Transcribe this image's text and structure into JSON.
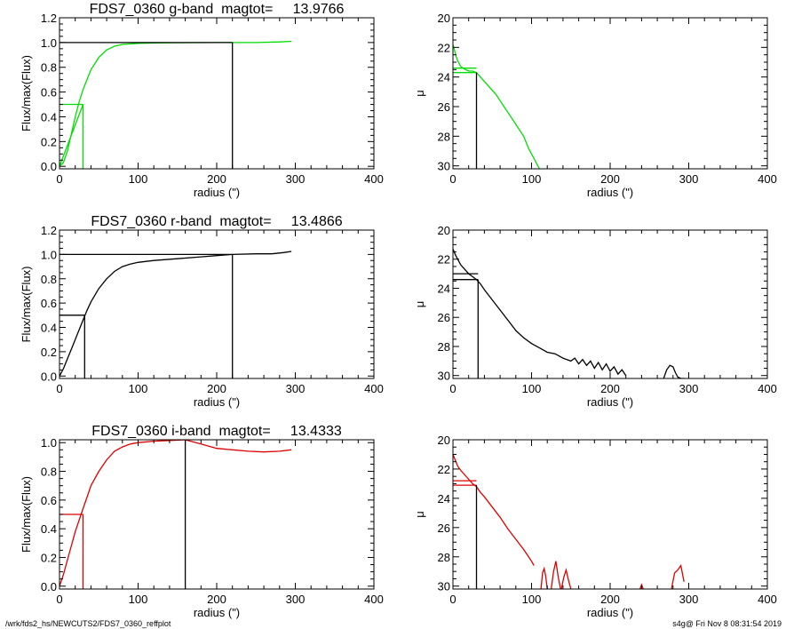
{
  "footer": {
    "path": "/wrk/fds2_hs/NEWCUTS2/FDS7_0360_reffplot",
    "stamp": "s4g@  Fri Nov  8 08:31:54 2019"
  },
  "colors": {
    "g": "#00dd00",
    "r": "#000000",
    "i": "#dd0000",
    "axis": "#000000"
  },
  "chart_data": [
    {
      "id": "g-growth",
      "type": "line",
      "title": "FDS7_0360 g-band  magtot=     13.9766",
      "xlabel": "radius (\")",
      "ylabel": "Flux/max(Flux)",
      "xlim": [
        0,
        400
      ],
      "ylim": [
        -0.02,
        1.2
      ],
      "xticks": [
        0,
        100,
        200,
        300,
        400
      ],
      "yticks": [
        0.0,
        0.2,
        0.4,
        0.6,
        0.8,
        1.0,
        1.2
      ],
      "ytick_labels": [
        "0.0",
        "0.2",
        "0.4",
        "0.6",
        "0.8",
        "1.0",
        "1.2"
      ],
      "series": [
        {
          "color": "#00dd00",
          "x": [
            0,
            5,
            10,
            15,
            20,
            25,
            30,
            40,
            50,
            60,
            70,
            80,
            100,
            120,
            150,
            200,
            220,
            250,
            280,
            295
          ],
          "y": [
            0.0,
            0.03,
            0.12,
            0.26,
            0.4,
            0.52,
            0.62,
            0.78,
            0.88,
            0.94,
            0.97,
            0.985,
            0.993,
            0.996,
            0.998,
            1.0,
            1.0,
            1.0,
            1.005,
            1.01
          ]
        }
      ],
      "markers": [
        {
          "color": "#00dd00",
          "segments": [
            [
              [
                0,
                0.5
              ],
              [
                30,
                0.5
              ]
            ],
            [
              [
                30,
                0.5
              ],
              [
                30,
                -0.02
              ]
            ],
            [
              [
                0,
                0
              ],
              [
                30,
                0.5
              ]
            ]
          ]
        },
        {
          "color": "#000000",
          "segments": [
            [
              [
                0,
                1.0
              ],
              [
                220,
                1.0
              ]
            ],
            [
              [
                220,
                1.0
              ],
              [
                220,
                -0.02
              ]
            ]
          ]
        }
      ]
    },
    {
      "id": "g-mu",
      "type": "line",
      "title": "",
      "xlabel": "radius (\")",
      "ylabel": "μ",
      "xlim": [
        0,
        400
      ],
      "ylim": [
        30.2,
        20
      ],
      "xticks": [
        0,
        100,
        200,
        300,
        400
      ],
      "yticks": [
        20,
        22,
        24,
        26,
        28,
        30
      ],
      "series": [
        {
          "color": "#00dd00",
          "x": [
            0,
            2,
            4,
            6,
            8,
            10,
            13,
            16,
            20,
            25,
            30,
            35,
            40,
            45,
            50,
            55,
            60,
            65,
            70,
            75,
            80,
            85,
            90,
            93,
            96,
            100,
            103,
            106,
            108,
            110
          ],
          "y": [
            21.8,
            22.2,
            22.6,
            22.9,
            23.1,
            23.3,
            23.4,
            23.5,
            23.6,
            23.6,
            23.7,
            24.0,
            24.3,
            24.6,
            24.9,
            25.2,
            25.6,
            26.0,
            26.4,
            26.8,
            27.2,
            27.6,
            28.0,
            28.4,
            28.8,
            29.2,
            29.5,
            29.8,
            30.0,
            30.2
          ]
        }
      ],
      "markers": [
        {
          "color": "#00dd00",
          "segments": [
            [
              [
                0,
                23.4
              ],
              [
                30,
                23.4
              ]
            ],
            [
              [
                0,
                23.7
              ],
              [
                30,
                23.7
              ]
            ]
          ]
        },
        {
          "color": "#000000",
          "segments": [
            [
              [
                30,
                23.7
              ],
              [
                30,
                30.2
              ]
            ]
          ]
        }
      ]
    },
    {
      "id": "r-growth",
      "type": "line",
      "title": "FDS7_0360 r-band  magtot=     13.4866",
      "xlabel": "radius (\")",
      "ylabel": "Flux/max(Flux)",
      "xlim": [
        0,
        400
      ],
      "ylim": [
        -0.02,
        1.2
      ],
      "xticks": [
        0,
        100,
        200,
        300,
        400
      ],
      "yticks": [
        0.0,
        0.2,
        0.4,
        0.6,
        0.8,
        1.0,
        1.2
      ],
      "ytick_labels": [
        "0.0",
        "0.2",
        "0.4",
        "0.6",
        "0.8",
        "1.0",
        "1.2"
      ],
      "series": [
        {
          "color": "#000000",
          "x": [
            0,
            5,
            10,
            15,
            20,
            25,
            30,
            35,
            40,
            50,
            60,
            70,
            80,
            90,
            100,
            120,
            150,
            180,
            200,
            220,
            250,
            270,
            285,
            295
          ],
          "y": [
            0.0,
            0.06,
            0.14,
            0.22,
            0.3,
            0.38,
            0.46,
            0.54,
            0.61,
            0.72,
            0.8,
            0.86,
            0.9,
            0.92,
            0.935,
            0.95,
            0.965,
            0.98,
            0.99,
            1.0,
            1.005,
            1.005,
            1.015,
            1.025
          ]
        }
      ],
      "markers": [
        {
          "color": "#000000",
          "segments": [
            [
              [
                0,
                0.5
              ],
              [
                32,
                0.5
              ]
            ],
            [
              [
                32,
                0.5
              ],
              [
                32,
                -0.02
              ]
            ],
            [
              [
                0,
                1.0
              ],
              [
                220,
                1.0
              ]
            ],
            [
              [
                220,
                1.0
              ],
              [
                220,
                -0.02
              ]
            ]
          ]
        }
      ]
    },
    {
      "id": "r-mu",
      "type": "line",
      "title": "",
      "xlabel": "radius (\")",
      "ylabel": "μ",
      "xlim": [
        0,
        400
      ],
      "ylim": [
        30.2,
        20
      ],
      "xticks": [
        0,
        100,
        200,
        300,
        400
      ],
      "yticks": [
        20,
        22,
        24,
        26,
        28,
        30
      ],
      "series": [
        {
          "color": "#000000",
          "x": [
            0,
            3,
            6,
            10,
            15,
            20,
            25,
            30,
            35,
            40,
            50,
            60,
            70,
            80,
            90,
            100,
            110,
            120,
            130,
            140,
            150,
            155,
            160,
            165,
            170,
            175,
            180,
            185,
            190,
            195,
            200,
            205,
            210,
            215,
            220
          ],
          "y": [
            21.3,
            21.7,
            22.0,
            22.4,
            22.7,
            23.0,
            23.2,
            23.4,
            23.7,
            24.1,
            24.8,
            25.5,
            26.2,
            26.9,
            27.4,
            27.8,
            28.1,
            28.4,
            28.5,
            28.8,
            29.0,
            28.8,
            29.2,
            28.9,
            29.3,
            29.0,
            29.5,
            29.1,
            29.6,
            29.2,
            29.7,
            29.4,
            29.9,
            29.6,
            30.0
          ]
        },
        {
          "color": "#000000",
          "x": [
            268,
            272,
            276,
            280,
            283,
            286,
            290,
            295
          ],
          "y": [
            30.2,
            29.6,
            29.3,
            29.4,
            29.8,
            30.1,
            30.2,
            30.2
          ]
        }
      ],
      "markers": [
        {
          "color": "#000000",
          "segments": [
            [
              [
                0,
                23.0
              ],
              [
                32,
                23.0
              ]
            ],
            [
              [
                0,
                23.4
              ],
              [
                32,
                23.4
              ]
            ],
            [
              [
                32,
                23.4
              ],
              [
                32,
                30.2
              ]
            ]
          ]
        }
      ]
    },
    {
      "id": "i-growth",
      "type": "line",
      "title": "FDS7_0360 i-band  magtot=     13.4333",
      "xlabel": "radius (\")",
      "ylabel": "Flux/max(Flux)",
      "xlim": [
        0,
        400
      ],
      "ylim": [
        -0.02,
        1.02
      ],
      "xticks": [
        0,
        100,
        200,
        300,
        400
      ],
      "yticks": [
        0.0,
        0.2,
        0.4,
        0.6,
        0.8,
        1.0
      ],
      "ytick_labels": [
        "0.0",
        "0.2",
        "0.4",
        "0.6",
        "0.8",
        "1.0"
      ],
      "series": [
        {
          "color": "#dd0000",
          "x": [
            0,
            5,
            10,
            15,
            20,
            25,
            30,
            35,
            40,
            50,
            60,
            70,
            80,
            90,
            100,
            120,
            140,
            160,
            180,
            200,
            220,
            240,
            260,
            280,
            295
          ],
          "y": [
            0.0,
            0.08,
            0.18,
            0.28,
            0.38,
            0.46,
            0.54,
            0.62,
            0.7,
            0.8,
            0.88,
            0.94,
            0.97,
            0.99,
            1.0,
            1.01,
            1.015,
            1.02,
            0.99,
            0.96,
            0.95,
            0.94,
            0.935,
            0.94,
            0.95
          ]
        }
      ],
      "markers": [
        {
          "color": "#dd0000",
          "segments": [
            [
              [
                0,
                0.5
              ],
              [
                30,
                0.5
              ]
            ],
            [
              [
                30,
                0.5
              ],
              [
                30,
                -0.02
              ]
            ]
          ]
        },
        {
          "color": "#000000",
          "segments": [
            [
              [
                160,
                1.02
              ],
              [
                160,
                -0.02
              ]
            ]
          ]
        }
      ]
    },
    {
      "id": "i-mu",
      "type": "line",
      "title": "",
      "xlabel": "radius (\")",
      "ylabel": "μ",
      "xlim": [
        0,
        400
      ],
      "ylim": [
        30.2,
        20
      ],
      "xticks": [
        0,
        100,
        200,
        300,
        400
      ],
      "yticks": [
        20,
        22,
        24,
        26,
        28,
        30
      ],
      "series": [
        {
          "color": "#dd0000",
          "x": [
            0,
            3,
            6,
            10,
            15,
            20,
            25,
            30,
            35,
            40,
            50,
            60,
            70,
            80,
            90,
            95,
            100,
            103
          ],
          "y": [
            21.0,
            21.4,
            21.8,
            22.1,
            22.4,
            22.7,
            23.0,
            23.2,
            23.6,
            23.9,
            24.6,
            25.3,
            26.1,
            26.8,
            27.5,
            27.9,
            28.3,
            28.6
          ]
        },
        {
          "color": "#dd0000",
          "x": [
            112,
            114,
            116,
            118,
            120
          ],
          "y": [
            30.2,
            29.1,
            28.8,
            29.3,
            30.2
          ]
        },
        {
          "color": "#dd0000",
          "x": [
            125,
            128,
            131,
            134,
            137
          ],
          "y": [
            30.2,
            29.0,
            28.3,
            29.4,
            30.2
          ]
        },
        {
          "color": "#dd0000",
          "x": [
            138,
            141,
            144,
            147,
            150
          ],
          "y": [
            30.2,
            29.4,
            28.9,
            29.6,
            30.2
          ]
        },
        {
          "color": "#dd0000",
          "x": [
            238,
            240,
            242
          ],
          "y": [
            30.2,
            29.9,
            30.2
          ]
        },
        {
          "color": "#dd0000",
          "x": [
            278,
            282,
            286,
            290,
            294
          ],
          "y": [
            30.2,
            29.1,
            28.9,
            28.6,
            29.7
          ]
        }
      ],
      "markers": [
        {
          "color": "#dd0000",
          "segments": [
            [
              [
                0,
                22.8
              ],
              [
                30,
                22.8
              ]
            ],
            [
              [
                0,
                23.1
              ],
              [
                30,
                23.1
              ]
            ]
          ]
        },
        {
          "color": "#000000",
          "segments": [
            [
              [
                30,
                23.1
              ],
              [
                30,
                30.2
              ]
            ]
          ]
        }
      ]
    }
  ]
}
